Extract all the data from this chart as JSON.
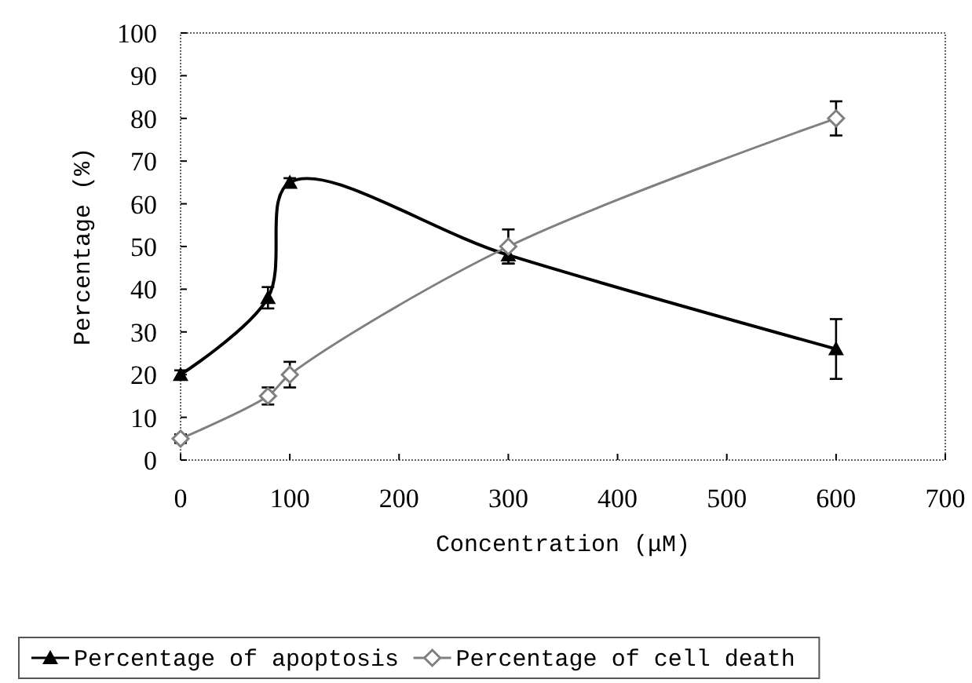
{
  "chart_data": {
    "type": "line",
    "xlabel": "Concentration (μM)",
    "ylabel": "Percentage (%)",
    "xlim": [
      0,
      700
    ],
    "xticks": [
      0,
      100,
      200,
      300,
      400,
      500,
      600,
      700
    ],
    "ylim": [
      0,
      100
    ],
    "yticks": [
      0,
      10,
      20,
      30,
      40,
      50,
      60,
      70,
      80,
      90,
      100
    ],
    "legend": "bottom",
    "series": [
      {
        "name": "Percentage of apoptosis",
        "color": "#000000",
        "marker": "triangle",
        "x": [
          0,
          80,
          100,
          300,
          600
        ],
        "values": [
          20,
          38,
          65,
          48,
          26
        ],
        "errors": [
          1,
          2.5,
          1,
          2,
          7
        ]
      },
      {
        "name": "Percentage of cell death",
        "color": "#808080",
        "marker": "diamond",
        "x": [
          0,
          80,
          100,
          300,
          600
        ],
        "values": [
          5,
          15,
          20,
          50,
          80
        ],
        "errors": [
          1,
          2,
          3,
          4,
          4
        ]
      }
    ]
  }
}
